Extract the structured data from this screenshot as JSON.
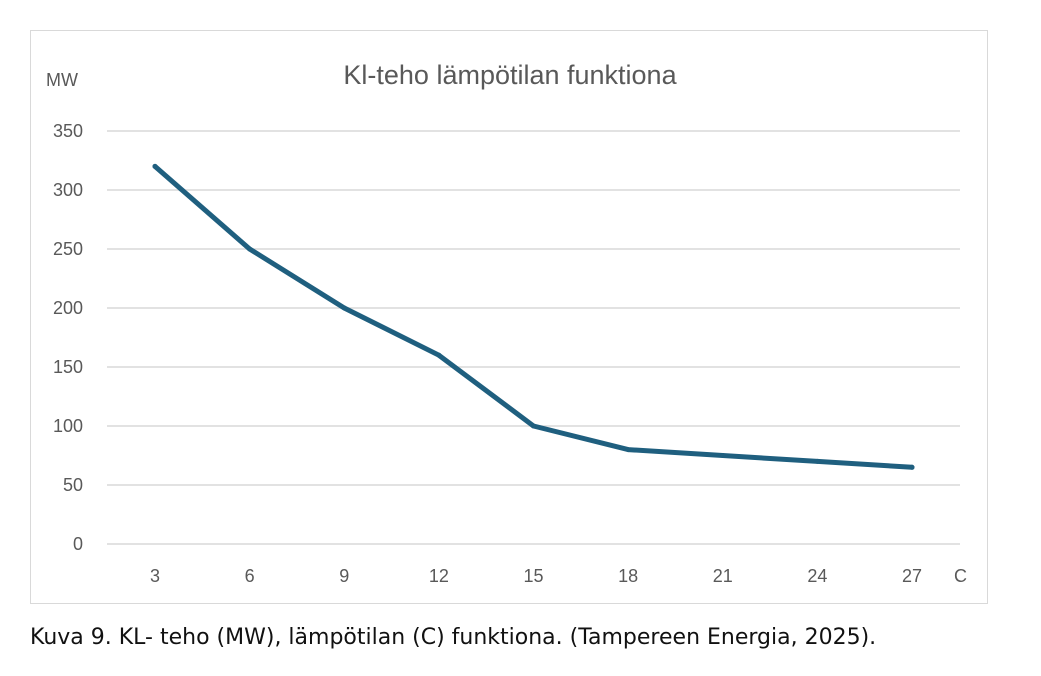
{
  "chart_data": {
    "type": "line",
    "title": "Kl-teho lämpötilan funktiona",
    "ylabel": "MW",
    "xlabel": "C",
    "categories": [
      "3",
      "6",
      "9",
      "12",
      "15",
      "18",
      "21",
      "24",
      "27"
    ],
    "series": [
      {
        "name": "Kl-teho",
        "values": [
          320,
          250,
          200,
          160,
          100,
          80,
          75,
          70,
          65
        ]
      }
    ],
    "ylim": [
      0,
      350
    ],
    "yticks": [
      "0",
      "50",
      "100",
      "150",
      "200",
      "250",
      "300",
      "350"
    ],
    "grid": true,
    "legend": "none",
    "colors": {
      "line": "#1f5f7f",
      "grid": "#d9d9d9",
      "tick_text": "#595959",
      "title_text": "#595959"
    }
  },
  "caption": "Kuva 9. KL- teho (MW), lämpötilan (C) funktiona. (Tampereen Energia, 2025)."
}
